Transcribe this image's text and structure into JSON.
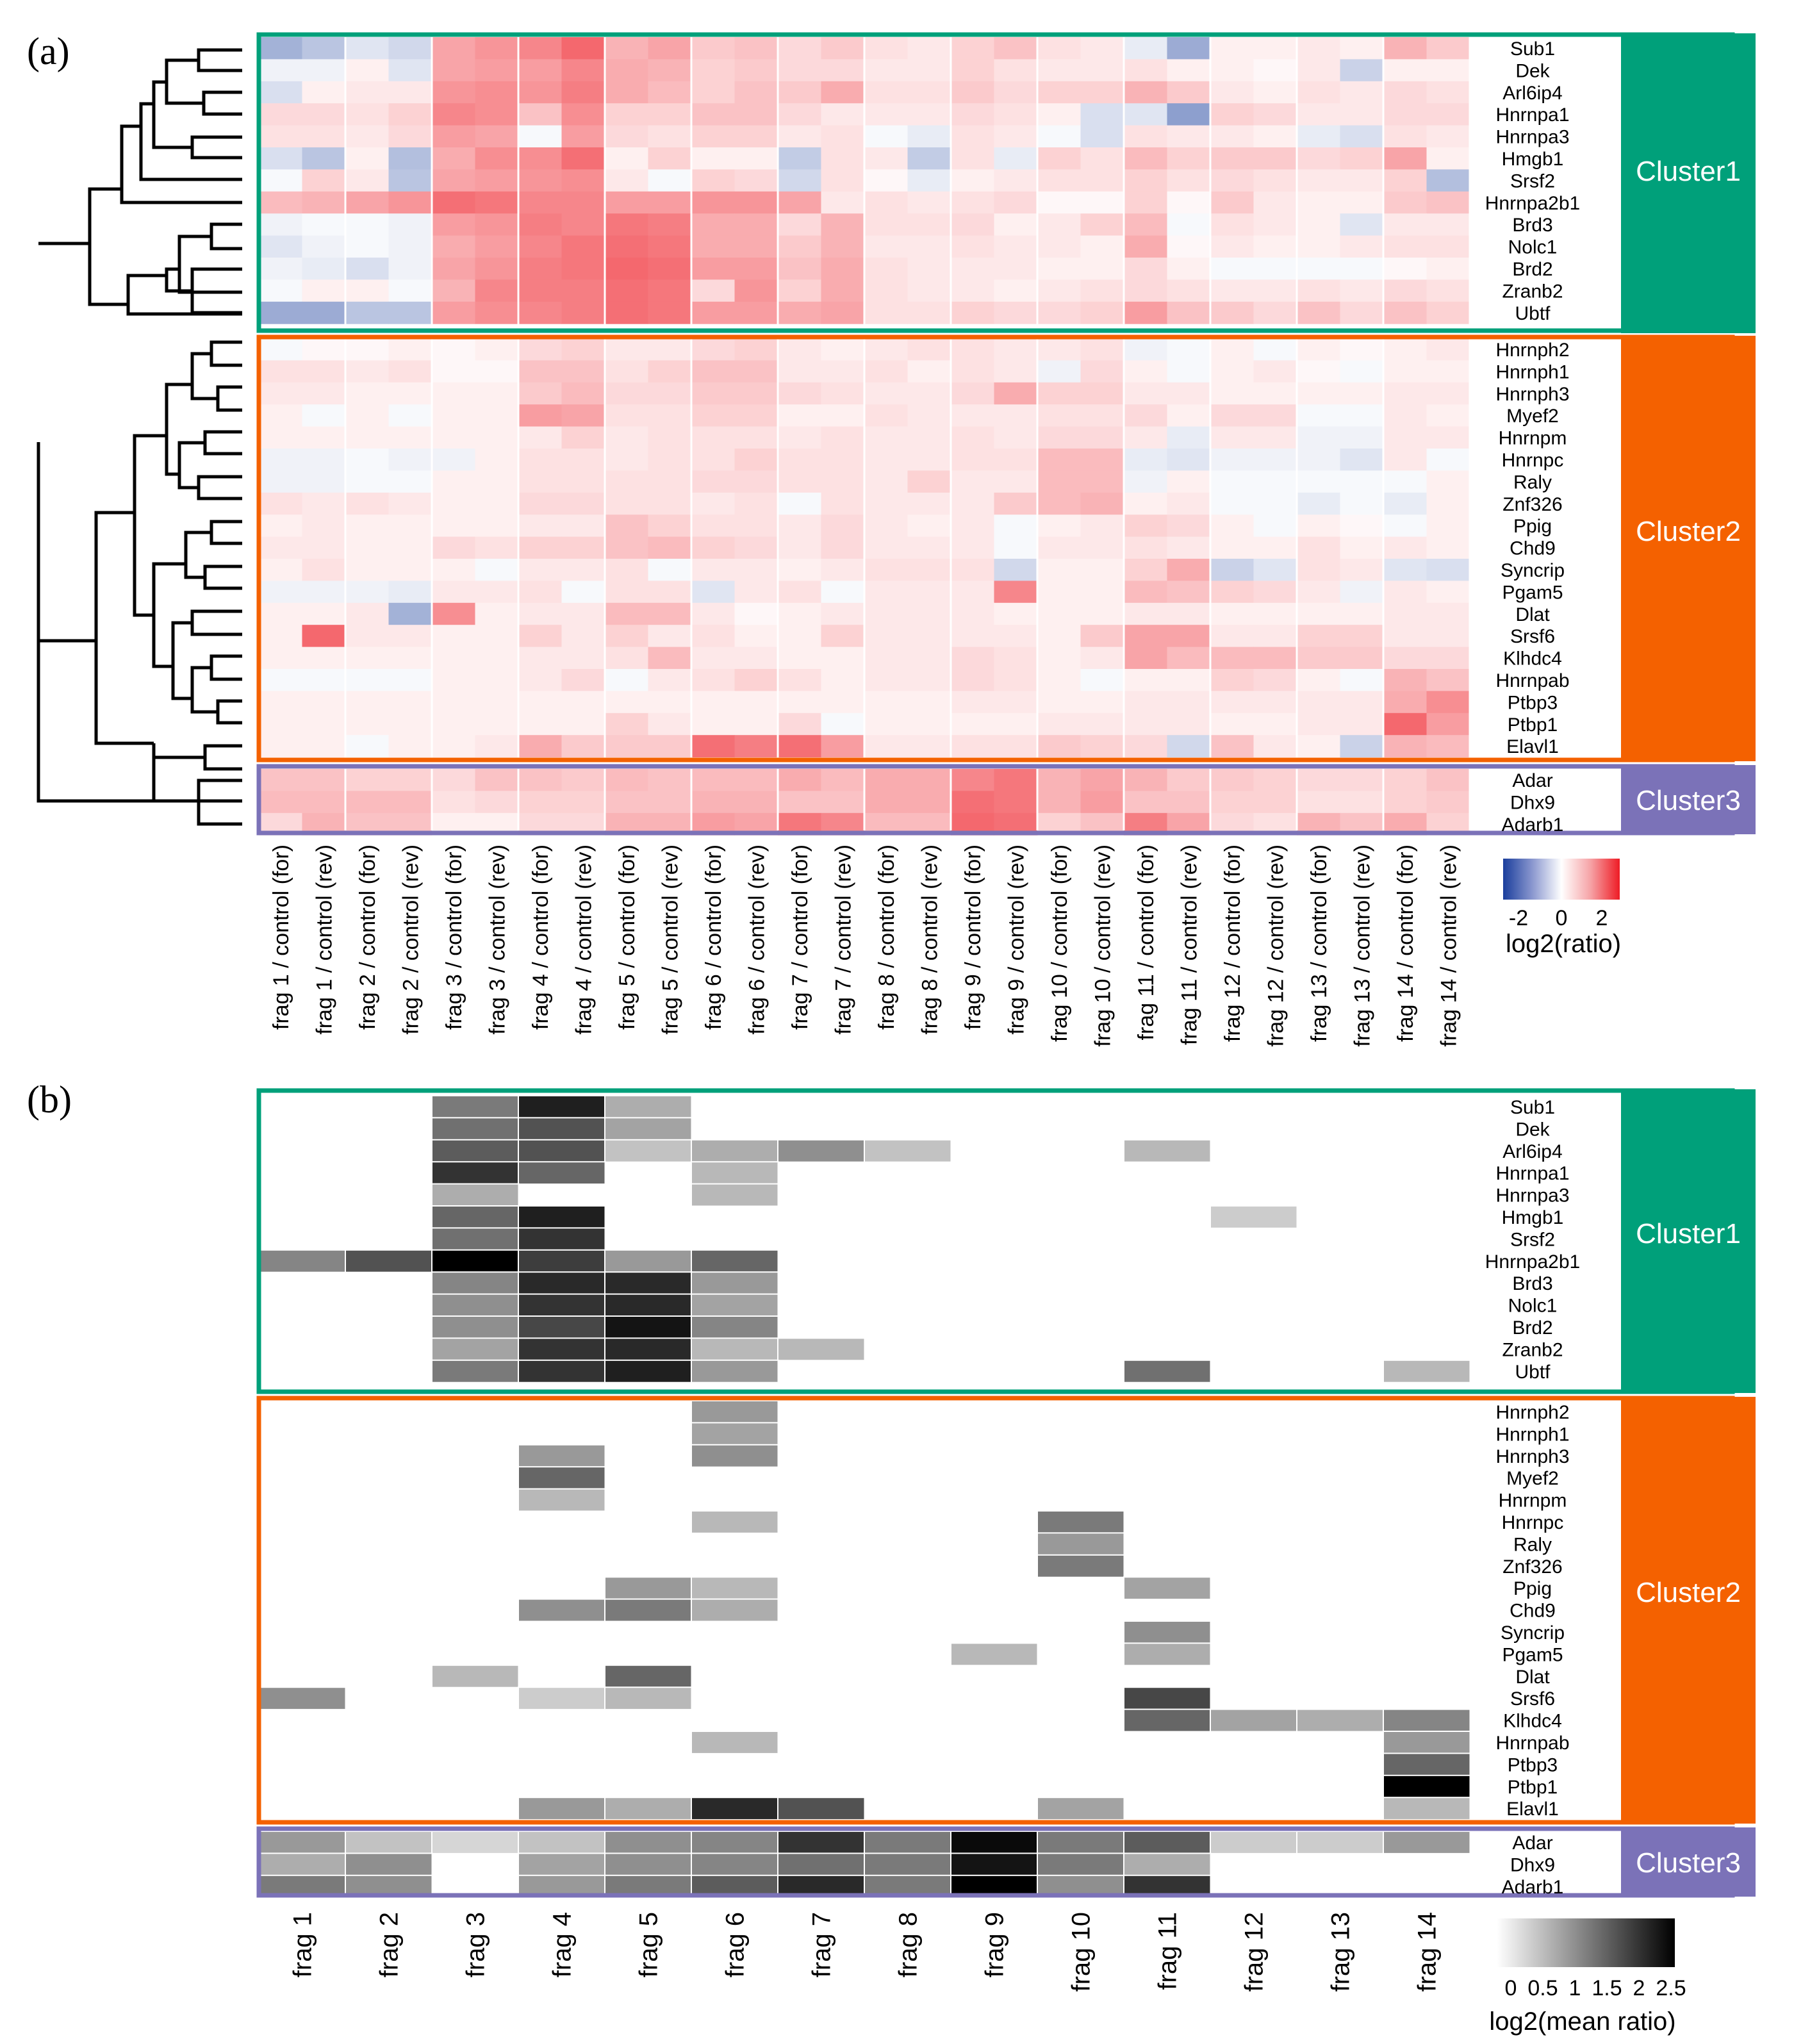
{
  "panel_a_label": "(a)",
  "panel_b_label": "(b)",
  "clusters": [
    {
      "name": "Cluster1",
      "color": "#00a07a"
    },
    {
      "name": "Cluster2",
      "color": "#f46100"
    },
    {
      "name": "Cluster3",
      "color": "#7b72b8"
    }
  ],
  "cluster_genes": {
    "Cluster1": [
      "Sub1",
      "Dek",
      "Arl6ip4",
      "Hnrnpa1",
      "Hnrnpa3",
      "Hmgb1",
      "Srsf2",
      "Hnrnpa2b1",
      "Brd3",
      "Nolc1",
      "Brd2",
      "Zranb2",
      "Ubtf"
    ],
    "Cluster2": [
      "Hnrnph2",
      "Hnrnph1",
      "Hnrnph3",
      "Myef2",
      "Hnrnpm",
      "Hnrnpc",
      "Raly",
      "Znf326",
      "Ppig",
      "Chd9",
      "Syncrip",
      "Pgam5",
      "Dlat",
      "Srsf6",
      "Klhdc4",
      "Hnrnpab",
      "Ptbp3",
      "Ptbp1",
      "Elavl1"
    ],
    "Cluster3": [
      "Adar",
      "Dhx9",
      "Adarb1"
    ]
  },
  "chart_data": [
    {
      "type": "heatmap",
      "panel": "(a)",
      "rows": [
        "Sub1",
        "Dek",
        "Arl6ip4",
        "Hnrnpa1",
        "Hnrnpa3",
        "Hmgb1",
        "Srsf2",
        "Hnrnpa2b1",
        "Brd3",
        "Nolc1",
        "Brd2",
        "Zranb2",
        "Ubtf",
        "Hnrnph2",
        "Hnrnph1",
        "Hnrnph3",
        "Myef2",
        "Hnrnpm",
        "Hnrnpc",
        "Raly",
        "Znf326",
        "Ppig",
        "Chd9",
        "Syncrip",
        "Pgam5",
        "Dlat",
        "Srsf6",
        "Klhdc4",
        "Hnrnpab",
        "Ptbp3",
        "Ptbp1",
        "Elavl1",
        "Adar",
        "Dhx9",
        "Adarb1"
      ],
      "columns": [
        "frag 1 / control (for)",
        "frag 1 / control (rev)",
        "frag 2 / control (for)",
        "frag 2 / control (rev)",
        "frag 3 / control (for)",
        "frag 3 / control (rev)",
        "frag 4 / control (for)",
        "frag 4 / control (rev)",
        "frag 5 / control (for)",
        "frag 5 / control (rev)",
        "frag 6 / control (for)",
        "frag 6 / control (rev)",
        "frag 7 / control (for)",
        "frag 7 / control (rev)",
        "frag 8 / control (for)",
        "frag 8 / control (rev)",
        "frag 9 / control (for)",
        "frag 9 / control (rev)",
        "frag 10 / control (for)",
        "frag 10 / control (rev)",
        "frag 11 / control (for)",
        "frag 11 / control (rev)",
        "frag 12 / control (for)",
        "frag 12 / control (rev)",
        "frag 13 / control (for)",
        "frag 13 / control (rev)",
        "frag 14 / control (for)",
        "frag 14 / control (rev)"
      ],
      "values": [
        [
          -1.2,
          -0.9,
          -0.4,
          -0.6,
          1.2,
          1.4,
          1.6,
          2.0,
          1.0,
          1.2,
          0.7,
          0.8,
          0.5,
          0.7,
          0.4,
          0.3,
          0.6,
          0.8,
          0.4,
          0.3,
          -0.3,
          -1.3,
          0.2,
          0.2,
          0.3,
          0.2,
          1.0,
          0.7
        ],
        [
          -0.2,
          -0.2,
          0.2,
          -0.4,
          1.2,
          1.3,
          1.3,
          1.6,
          1.1,
          1.0,
          0.6,
          0.7,
          0.5,
          0.5,
          0.3,
          0.3,
          0.6,
          0.4,
          0.3,
          0.3,
          0.4,
          0.2,
          0.2,
          0.1,
          0.3,
          -0.7,
          0.2,
          0.2
        ],
        [
          -0.5,
          0.2,
          0.3,
          0.3,
          1.4,
          1.5,
          1.4,
          1.7,
          1.1,
          0.9,
          0.6,
          0.8,
          0.7,
          1.1,
          0.4,
          0.4,
          0.7,
          0.5,
          0.6,
          0.6,
          1.0,
          0.7,
          0.3,
          0.2,
          0.4,
          0.3,
          0.5,
          0.4
        ],
        [
          0.5,
          0.5,
          0.4,
          0.6,
          1.6,
          1.5,
          0.8,
          1.5,
          0.6,
          0.6,
          0.8,
          0.8,
          0.5,
          0.3,
          0.3,
          0.3,
          0.5,
          0.4,
          0.2,
          -0.5,
          -0.4,
          -1.5,
          0.6,
          0.5,
          0.3,
          0.3,
          0.5,
          0.5
        ],
        [
          0.4,
          0.4,
          0.3,
          0.5,
          1.3,
          1.2,
          -0.1,
          1.3,
          0.5,
          0.4,
          0.6,
          0.6,
          0.3,
          0.4,
          -0.1,
          -0.3,
          0.4,
          0.3,
          -0.1,
          -0.5,
          0.4,
          0.3,
          0.3,
          0.2,
          -0.3,
          -0.5,
          0.4,
          0.3
        ],
        [
          -0.5,
          -0.9,
          0.2,
          -1.0,
          1.1,
          1.5,
          1.5,
          1.9,
          0.2,
          0.6,
          0.2,
          0.2,
          -0.8,
          0.4,
          0.3,
          -0.8,
          0.4,
          -0.3,
          0.6,
          0.4,
          0.9,
          0.6,
          0.7,
          0.7,
          0.5,
          0.6,
          1.2,
          0.2
        ],
        [
          -0.1,
          0.6,
          0.3,
          -0.9,
          1.2,
          1.3,
          1.4,
          1.5,
          0.3,
          -0.1,
          0.6,
          0.5,
          -0.6,
          0.4,
          0.1,
          -0.3,
          0.2,
          0.3,
          0.4,
          0.4,
          0.6,
          0.4,
          0.5,
          0.4,
          0.3,
          0.3,
          0.6,
          -1.0
        ],
        [
          0.9,
          1.0,
          1.2,
          1.4,
          1.9,
          1.8,
          1.6,
          1.6,
          1.3,
          1.3,
          1.4,
          1.4,
          1.2,
          0.3,
          0.4,
          0.3,
          0.4,
          0.5,
          0.1,
          0.1,
          0.6,
          0.1,
          0.7,
          0.3,
          0.2,
          0.2,
          0.7,
          0.8
        ],
        [
          -0.2,
          -0.1,
          -0.1,
          -0.2,
          1.3,
          1.4,
          1.7,
          1.6,
          1.8,
          1.7,
          1.1,
          1.1,
          0.5,
          1.0,
          0.4,
          0.4,
          0.5,
          0.2,
          0.3,
          0.6,
          0.9,
          -0.1,
          0.4,
          0.3,
          0.2,
          -0.4,
          0.3,
          0.3
        ],
        [
          -0.4,
          -0.2,
          -0.1,
          -0.2,
          1.1,
          1.3,
          1.6,
          1.8,
          1.9,
          1.8,
          1.1,
          1.1,
          0.7,
          1.0,
          0.3,
          0.3,
          0.4,
          0.3,
          0.3,
          0.2,
          1.1,
          0.1,
          0.3,
          0.2,
          0.2,
          0.3,
          0.4,
          0.4
        ],
        [
          -0.2,
          -0.3,
          -0.5,
          -0.2,
          1.2,
          1.4,
          1.7,
          1.8,
          2.0,
          1.9,
          1.3,
          1.3,
          0.8,
          1.1,
          0.4,
          0.3,
          0.3,
          0.3,
          0.2,
          0.2,
          0.5,
          0.2,
          -0.1,
          -0.1,
          -0.1,
          -0.1,
          0.1,
          0.2
        ],
        [
          -0.1,
          0.2,
          0.2,
          -0.1,
          1.0,
          1.6,
          1.7,
          1.7,
          1.9,
          1.8,
          0.5,
          1.4,
          0.6,
          1.1,
          0.4,
          0.3,
          0.3,
          0.2,
          0.3,
          0.4,
          0.5,
          0.4,
          0.3,
          0.3,
          0.4,
          0.3,
          0.5,
          0.4
        ],
        [
          -1.3,
          -1.3,
          -0.9,
          -0.9,
          1.3,
          1.5,
          1.6,
          1.7,
          1.9,
          1.8,
          1.3,
          1.3,
          1.1,
          1.2,
          0.4,
          0.4,
          0.6,
          0.5,
          0.5,
          0.6,
          1.3,
          0.8,
          0.7,
          0.5,
          0.8,
          0.5,
          0.8,
          0.6
        ]
      ]
    },
    {
      "type": "heatmap",
      "panel": "(b)",
      "columns": [
        "frag 1",
        "frag 2",
        "frag 3",
        "frag 4",
        "frag 5",
        "frag 6",
        "frag 7",
        "frag 8",
        "frag 9",
        "frag 10",
        "frag 11",
        "frag 12",
        "frag 13",
        "frag 14"
      ],
      "colorbar": {
        "ticks": [
          "0",
          "0.5",
          "1",
          "1.5",
          "2",
          "2.5"
        ],
        "label": "log2(mean ratio)",
        "range": [
          0,
          2.5
        ]
      }
    }
  ],
  "panel_a_colorbar": {
    "ticks": [
      "-2",
      "0",
      "2"
    ],
    "label": "log2(ratio)",
    "range": [
      -3,
      3
    ]
  },
  "panel_a_extra_rows": [
    [
      -0.1,
      0.1,
      0.1,
      0.2,
      0.1,
      0.2,
      0.5,
      0.6,
      0.3,
      0.3,
      0.5,
      0.6,
      0.3,
      0.2,
      0.3,
      0.4,
      0.4,
      0.3,
      0.3,
      0.4,
      -0.2,
      -0.1,
      0.2,
      -0.1,
      0.2,
      0.1,
      0.2,
      0.3
    ],
    [
      0.4,
      0.4,
      0.3,
      0.4,
      0.1,
      0.1,
      0.8,
      0.8,
      0.4,
      0.6,
      0.8,
      0.8,
      0.3,
      0.3,
      0.4,
      0.2,
      0.4,
      0.3,
      -0.2,
      0.5,
      0.2,
      -0.1,
      0.2,
      0.3,
      0.1,
      -0.1,
      0.2,
      0.2
    ],
    [
      0.3,
      0.3,
      0.2,
      0.2,
      0.2,
      0.2,
      0.7,
      0.9,
      0.5,
      0.5,
      0.7,
      0.7,
      0.5,
      0.4,
      0.3,
      0.3,
      0.5,
      1.1,
      0.6,
      0.6,
      0.3,
      0.3,
      0.2,
      0.2,
      0.2,
      0.2,
      0.3,
      0.3
    ],
    [
      0.2,
      -0.1,
      0.2,
      -0.1,
      0.2,
      0.2,
      1.3,
      1.2,
      0.4,
      0.4,
      0.6,
      0.6,
      0.2,
      0.2,
      0.4,
      0.3,
      0.3,
      0.3,
      0.4,
      0.4,
      0.5,
      0.2,
      0.5,
      0.5,
      -0.1,
      -0.1,
      0.3,
      0.2
    ],
    [
      0.2,
      0.2,
      0.2,
      0.2,
      0.2,
      0.2,
      0.3,
      0.6,
      0.3,
      0.4,
      0.4,
      0.4,
      0.3,
      0.4,
      0.3,
      0.3,
      0.4,
      0.3,
      0.5,
      0.5,
      0.3,
      -0.3,
      0.3,
      0.3,
      -0.2,
      -0.2,
      0.3,
      0.3
    ],
    [
      -0.2,
      -0.2,
      -0.1,
      -0.2,
      -0.2,
      0.2,
      0.4,
      0.4,
      0.3,
      0.4,
      0.4,
      0.6,
      0.4,
      0.4,
      0.3,
      0.3,
      0.4,
      0.4,
      0.9,
      0.9,
      -0.3,
      -0.4,
      -0.2,
      -0.2,
      -0.2,
      -0.4,
      0.3,
      -0.1
    ],
    [
      -0.2,
      -0.2,
      -0.1,
      -0.1,
      0.2,
      0.2,
      0.4,
      0.4,
      0.4,
      0.4,
      0.5,
      0.5,
      0.4,
      0.4,
      0.3,
      0.6,
      0.3,
      0.3,
      0.9,
      0.9,
      -0.2,
      0.2,
      -0.1,
      -0.1,
      -0.1,
      -0.1,
      -0.1,
      0.2
    ],
    [
      0.4,
      0.3,
      0.4,
      0.3,
      0.2,
      0.2,
      0.5,
      0.5,
      0.4,
      0.4,
      0.3,
      0.4,
      -0.1,
      0.4,
      0.3,
      0.3,
      0.3,
      0.7,
      0.9,
      1.0,
      0.2,
      0.3,
      -0.1,
      -0.1,
      -0.3,
      -0.1,
      -0.3,
      0.2
    ],
    [
      0.2,
      0.3,
      0.2,
      0.2,
      0.2,
      0.2,
      0.3,
      0.3,
      0.8,
      0.6,
      0.4,
      0.4,
      0.3,
      0.5,
      0.3,
      0.2,
      0.3,
      -0.1,
      0.2,
      0.3,
      0.6,
      0.5,
      0.2,
      -0.1,
      0.2,
      0.1,
      -0.1,
      0.2
    ],
    [
      0.3,
      0.3,
      0.2,
      0.2,
      0.5,
      0.4,
      0.6,
      0.6,
      0.8,
      0.9,
      0.6,
      0.5,
      0.3,
      0.5,
      0.3,
      0.3,
      0.3,
      -0.1,
      0.3,
      0.3,
      0.4,
      0.3,
      0.2,
      0.2,
      0.4,
      0.2,
      0.3,
      0.2
    ],
    [
      0.2,
      0.4,
      0.2,
      0.2,
      0.2,
      -0.1,
      0.3,
      0.3,
      0.4,
      -0.1,
      0.3,
      0.3,
      0.2,
      0.3,
      0.4,
      0.4,
      0.4,
      -0.6,
      0.2,
      0.2,
      0.6,
      1.1,
      -0.7,
      -0.4,
      0.4,
      0.3,
      -0.4,
      -0.5
    ],
    [
      -0.2,
      -0.2,
      -0.2,
      -0.3,
      0.3,
      0.3,
      0.4,
      -0.1,
      0.4,
      0.4,
      -0.4,
      0.3,
      0.4,
      -0.1,
      0.3,
      0.3,
      0.3,
      1.6,
      0.2,
      0.2,
      0.9,
      0.8,
      0.6,
      0.5,
      0.3,
      -0.2,
      0.3,
      0.2
    ],
    [
      0.2,
      0.2,
      0.3,
      -1.2,
      1.5,
      0.2,
      0.3,
      0.3,
      0.9,
      0.9,
      0.3,
      0.1,
      0.2,
      0.3,
      0.3,
      0.3,
      0.3,
      0.2,
      0.2,
      0.2,
      0.3,
      0.3,
      0.2,
      0.2,
      0.2,
      0.2,
      0.3,
      0.3
    ],
    [
      0.2,
      2.0,
      0.3,
      0.3,
      0.2,
      0.2,
      0.6,
      0.3,
      0.6,
      0.3,
      0.4,
      0.2,
      0.2,
      0.6,
      0.3,
      0.3,
      0.3,
      0.3,
      0.2,
      0.7,
      1.2,
      1.2,
      0.3,
      0.3,
      0.6,
      0.6,
      0.3,
      0.3
    ],
    [
      0.2,
      0.2,
      0.2,
      0.2,
      0.2,
      0.2,
      0.3,
      0.3,
      0.4,
      0.9,
      0.3,
      0.3,
      0.2,
      0.2,
      0.3,
      0.3,
      0.5,
      0.4,
      0.2,
      0.3,
      1.2,
      0.9,
      0.9,
      0.9,
      0.7,
      0.7,
      0.5,
      0.5
    ],
    [
      -0.1,
      -0.1,
      -0.1,
      -0.1,
      0.2,
      0.2,
      0.3,
      0.5,
      -0.1,
      0.3,
      0.4,
      0.6,
      0.4,
      0.2,
      0.3,
      0.3,
      0.5,
      0.4,
      0.2,
      -0.1,
      0.2,
      0.2,
      0.6,
      0.5,
      0.2,
      -0.1,
      1.0,
      0.8
    ],
    [
      0.2,
      0.2,
      0.2,
      0.2,
      0.2,
      0.2,
      0.2,
      0.2,
      0.2,
      0.2,
      0.2,
      0.2,
      0.2,
      0.2,
      0.2,
      0.2,
      0.3,
      0.3,
      0.2,
      0.2,
      0.3,
      0.3,
      0.3,
      0.3,
      0.3,
      0.3,
      1.1,
      1.5
    ],
    [
      0.2,
      0.2,
      0.2,
      0.2,
      0.2,
      0.2,
      0.2,
      0.2,
      0.6,
      0.3,
      0.2,
      0.2,
      0.5,
      -0.1,
      0.2,
      0.2,
      0.2,
      0.2,
      0.3,
      0.3,
      0.3,
      0.3,
      0.2,
      0.2,
      0.3,
      0.3,
      2.0,
      1.3
    ],
    [
      0.2,
      0.2,
      -0.1,
      0.2,
      0.2,
      0.3,
      1.1,
      0.7,
      0.7,
      0.7,
      1.9,
      1.7,
      1.9,
      1.3,
      0.3,
      0.3,
      0.4,
      0.4,
      0.7,
      0.6,
      0.5,
      -0.6,
      0.8,
      0.3,
      0.2,
      -0.7,
      1.0,
      0.9
    ],
    [
      0.8,
      0.8,
      0.6,
      0.6,
      0.5,
      0.8,
      0.8,
      0.7,
      0.9,
      0.8,
      0.9,
      0.9,
      1.1,
      0.9,
      1.1,
      1.1,
      1.6,
      1.8,
      1.0,
      1.2,
      1.0,
      0.7,
      0.7,
      0.6,
      0.5,
      0.5,
      0.6,
      0.8
    ],
    [
      0.9,
      0.9,
      0.9,
      0.9,
      0.4,
      0.5,
      0.6,
      0.6,
      0.8,
      0.8,
      1.0,
      1.0,
      0.8,
      0.8,
      1.1,
      1.1,
      1.9,
      1.8,
      1.0,
      1.3,
      0.8,
      0.8,
      0.6,
      0.6,
      0.4,
      0.4,
      0.6,
      0.7
    ],
    [
      0.5,
      1.0,
      0.8,
      0.8,
      0.2,
      0.2,
      0.5,
      0.5,
      1.0,
      1.0,
      1.3,
      1.2,
      1.8,
      1.6,
      0.9,
      0.9,
      2.0,
      1.9,
      0.6,
      0.8,
      1.7,
      1.2,
      0.5,
      0.4,
      1.0,
      0.8,
      1.1,
      0.6
    ]
  ]
}
